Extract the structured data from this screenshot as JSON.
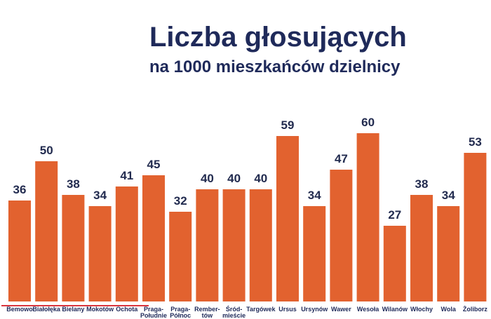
{
  "chart_data": {
    "type": "bar",
    "title": "Liczba głosujących",
    "subtitle": "na 1000 mieszkańców dzielnicy",
    "categories": [
      [
        "Bemowo"
      ],
      [
        "Białołęka"
      ],
      [
        "Bielany"
      ],
      [
        "Mokotów"
      ],
      [
        "Ochota"
      ],
      [
        "Praga-",
        "Południe"
      ],
      [
        "Praga-",
        "Północ"
      ],
      [
        "Rember-",
        "tów"
      ],
      [
        "Śród-",
        "mieście"
      ],
      [
        "Targówek"
      ],
      [
        "Ursus"
      ],
      [
        "Ursynów"
      ],
      [
        "Wawer"
      ],
      [
        "Wesoła"
      ],
      [
        "Wilanów"
      ],
      [
        "Włochy"
      ],
      [
        "Wola"
      ],
      [
        "Żoliborz"
      ]
    ],
    "values": [
      36,
      50,
      38,
      34,
      41,
      45,
      32,
      40,
      40,
      40,
      59,
      34,
      47,
      60,
      27,
      38,
      34,
      53
    ],
    "ylim": [
      0,
      60
    ],
    "grid": false,
    "colors": {
      "bar": "#e2622f",
      "title": "#1f2a5a",
      "accent": "#d9363e"
    }
  }
}
